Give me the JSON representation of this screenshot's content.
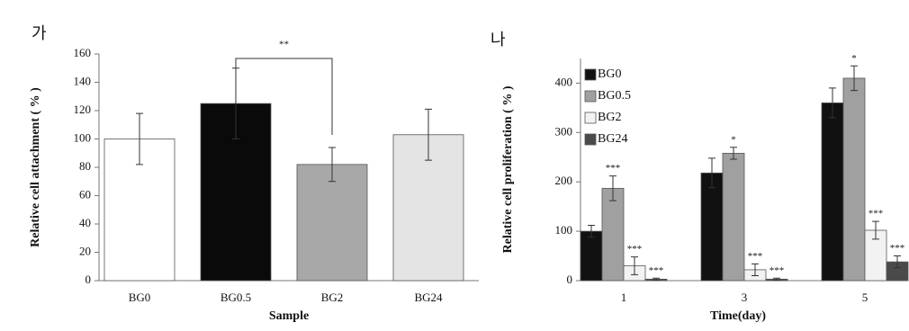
{
  "chart_data": [
    {
      "type": "bar",
      "panel_label": "가",
      "y_label": "Relative cell attachment ( % )",
      "x_label": "Sample",
      "categories": [
        "BG0",
        "BG0.5",
        "BG2",
        "BG24"
      ],
      "values": [
        100,
        125,
        82,
        103
      ],
      "errors": [
        18,
        25,
        12,
        18
      ],
      "colors": [
        "#ffffff",
        "#0a0a0a",
        "#a8a8a8",
        "#e4e4e4"
      ],
      "ylim": [
        0,
        160
      ],
      "yticks": [
        0,
        20,
        40,
        60,
        80,
        100,
        120,
        140,
        160
      ],
      "annotation": "**"
    },
    {
      "type": "bar",
      "panel_label": "나",
      "y_label": "Relative cell proliferation ( % )",
      "x_label": "Time(day)",
      "categories": [
        "1",
        "3",
        "5"
      ],
      "series": [
        {
          "name": "BG0",
          "color": "#111111",
          "values": [
            100,
            218,
            360
          ],
          "errors": [
            12,
            30,
            30
          ],
          "significance": [
            null,
            null,
            null
          ]
        },
        {
          "name": "BG0.5",
          "color": "#a0a0a0",
          "values": [
            187,
            258,
            410
          ],
          "errors": [
            25,
            12,
            25
          ],
          "significance": [
            "***",
            "*",
            "*"
          ]
        },
        {
          "name": "BG2",
          "color": "#f2f2f2",
          "values": [
            30,
            22,
            102
          ],
          "errors": [
            18,
            12,
            18
          ],
          "significance": [
            "***",
            "***",
            "***"
          ]
        },
        {
          "name": "BG24",
          "color": "#4a4a4a",
          "values": [
            3,
            3,
            38
          ],
          "errors": [
            2,
            2,
            12
          ],
          "significance": [
            "***",
            "***",
            "***"
          ]
        }
      ],
      "ylim": [
        0,
        450
      ],
      "yticks": [
        0,
        100,
        200,
        300,
        400
      ],
      "legend": "upper-left"
    }
  ]
}
